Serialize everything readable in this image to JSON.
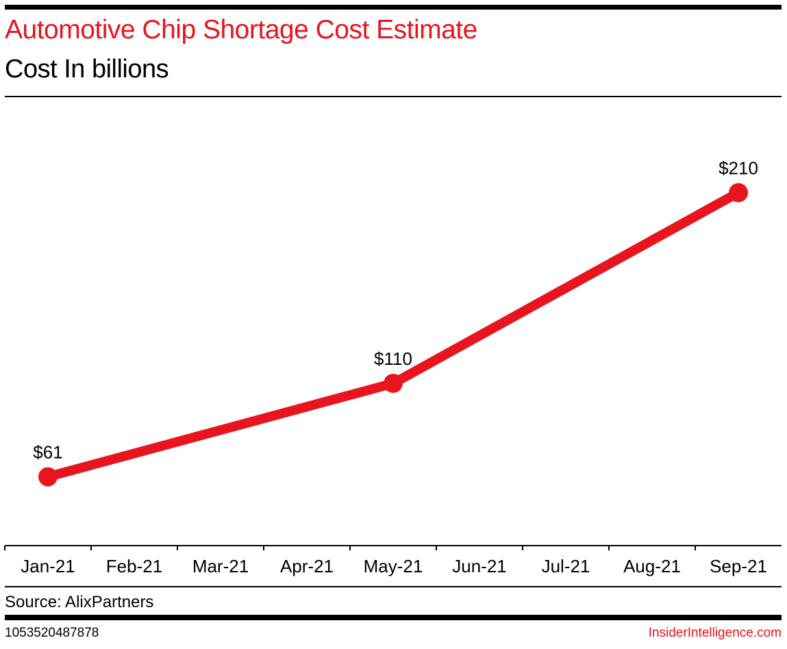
{
  "header": {
    "title": "Automotive Chip Shortage Cost Estimate",
    "subtitle": "Cost In billions"
  },
  "footer": {
    "source": "Source: AlixPartners",
    "chart_id": "1053520487878",
    "brand": "InsiderIntelligence.com"
  },
  "colors": {
    "accent": "#e8141e",
    "text": "#000000"
  },
  "chart_data": {
    "type": "line",
    "title": "Automotive Chip Shortage Cost Estimate",
    "subtitle": "Cost In billions",
    "xlabel": "",
    "ylabel": "",
    "categories": [
      "Jan-21",
      "Feb-21",
      "Mar-21",
      "Apr-21",
      "May-21",
      "Jun-21",
      "Jul-21",
      "Aug-21",
      "Sep-21"
    ],
    "series": [
      {
        "name": "Cost (billions)",
        "points": [
          {
            "x": "Jan-21",
            "y": 61,
            "label": "$61"
          },
          {
            "x": "May-21",
            "y": 110,
            "label": "$110"
          },
          {
            "x": "Sep-21",
            "y": 210,
            "label": "$210"
          }
        ],
        "color": "#e8141e"
      }
    ],
    "ylim": [
      31,
      250
    ],
    "grid": false,
    "legend": "none",
    "source": "AlixPartners"
  }
}
